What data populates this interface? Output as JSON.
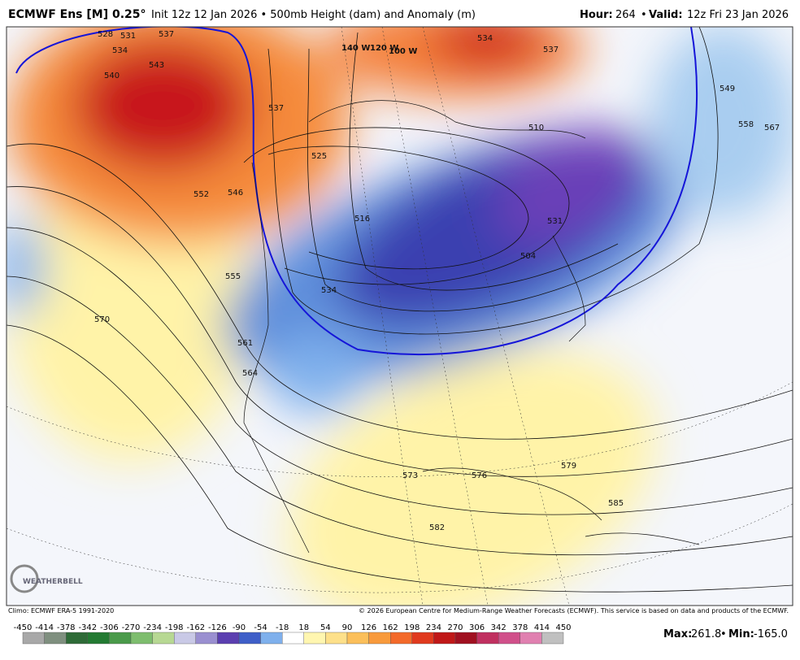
{
  "header": {
    "title": "ECMWF Ens [M] 0.25°",
    "subtitle": "Init 12z 12 Jan 2026 • 500mb Height (dam) and Anomaly (m)",
    "hour_label": "Hour:",
    "hour": "264",
    "valid_label": "Valid:",
    "valid": "12z Fri 23 Jan 2026"
  },
  "map": {
    "contour_labels": [
      "528",
      "531",
      "534",
      "537",
      "543",
      "540",
      "537",
      "534",
      "537",
      "510",
      "525",
      "516",
      "504",
      "534",
      "546",
      "552",
      "549",
      "558",
      "567",
      "555",
      "570",
      "561",
      "564",
      "573",
      "576",
      "579",
      "582",
      "585",
      "531"
    ],
    "longitude_labels": [
      "140 W",
      "120 W",
      "100 W"
    ],
    "logo": "WEATHERBELL"
  },
  "footer": {
    "climo": "Climo: ECMWF ERA-5 1991-2020",
    "copyright": "© 2026 European Centre for Medium-Range Weather Forecasts (ECMWF). This service is based on data and products of the ECMWF.",
    "max_label": "Max:",
    "max": "261.8",
    "min_label": "Min:",
    "min": "-165.0"
  },
  "colorbar": {
    "labels": [
      "-450",
      "-414",
      "-378",
      "-342",
      "-306",
      "-270",
      "-234",
      "-198",
      "-162",
      "-126",
      "-90",
      "-54",
      "-18",
      "18",
      "54",
      "90",
      "126",
      "162",
      "198",
      "234",
      "270",
      "306",
      "342",
      "378",
      "414",
      "450"
    ],
    "colors": [
      "#a8a8a8",
      "#7f8f7f",
      "#2e6b37",
      "#237a32",
      "#4a9a4a",
      "#7ebd6e",
      "#b7d893",
      "#c9c9e6",
      "#9a8fd0",
      "#5b3fb0",
      "#3f5fc8",
      "#7fb0ec",
      "#ffffff",
      "#fff6b0",
      "#fde08a",
      "#fbbf5a",
      "#f89a3c",
      "#f36a2a",
      "#e03a1e",
      "#c01818",
      "#a01020",
      "#c03060",
      "#d0508a",
      "#e080b0",
      "#c0c0c0"
    ]
  }
}
